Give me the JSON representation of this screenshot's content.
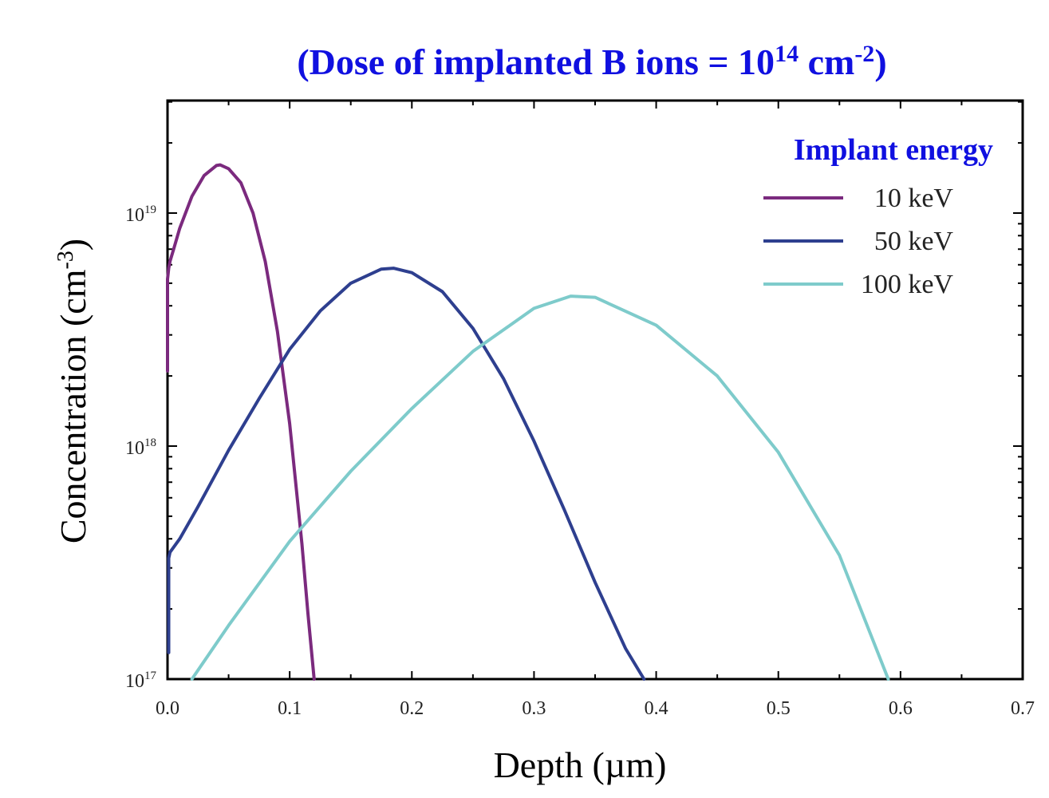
{
  "chart_data": {
    "type": "line",
    "title": {
      "prefix": "(Dose of implanted B ions = 10",
      "exp": "14",
      "mid": " cm",
      "exp2": "-2",
      "suffix": ")"
    },
    "xlabel": "Depth (µm)",
    "ylabel": {
      "base": "Concentration (cm",
      "exp": "-3",
      "close": ")"
    },
    "x_ticks": [
      "0.0",
      "0.1",
      "0.2",
      "0.3",
      "0.4",
      "0.5",
      "0.6",
      "0.7"
    ],
    "y_ticks": [
      {
        "base": "10",
        "exp": "17",
        "value": 1e+17
      },
      {
        "base": "10",
        "exp": "18",
        "value": 1e+18
      },
      {
        "base": "10",
        "exp": "19",
        "value": 1e+19
      }
    ],
    "xlim": [
      0,
      0.7
    ],
    "ylim": [
      1e+17,
      3e+19
    ],
    "y_scale": "log",
    "grid": false,
    "legend": {
      "title": "Implant energy",
      "placement": "top-right"
    },
    "colors": {
      "title": "#1010e0",
      "legend_title": "#1010e0",
      "axis": "#000000"
    },
    "series": [
      {
        "name": "10 keV",
        "color": "#7b2a7e",
        "x": [
          0.0,
          0.0,
          0.001,
          0.002,
          0.005,
          0.01,
          0.02,
          0.03,
          0.04,
          0.043,
          0.05,
          0.06,
          0.07,
          0.08,
          0.09,
          0.1,
          0.11,
          0.115,
          0.12
        ],
        "y": [
          2.1e+18,
          5.2e+18,
          5.8e+18,
          6.2e+18,
          7e+18,
          8.6e+18,
          1.18e+19,
          1.45e+19,
          1.6e+19,
          1.61e+19,
          1.55e+19,
          1.35e+19,
          1e+19,
          6.2e+18,
          3.1e+18,
          1.25e+18,
          3.8e+17,
          1.9e+17,
          1e+17
        ]
      },
      {
        "name": "50 keV",
        "color": "#2e3f8f",
        "x": [
          0.001,
          0.001,
          0.002,
          0.01,
          0.025,
          0.05,
          0.075,
          0.1,
          0.125,
          0.15,
          0.175,
          0.185,
          0.2,
          0.225,
          0.25,
          0.275,
          0.3,
          0.325,
          0.35,
          0.375,
          0.39
        ],
        "y": [
          1.3e+17,
          3.3e+17,
          3.5e+17,
          4e+17,
          5.5e+17,
          9.6e+17,
          1.6e+18,
          2.6e+18,
          3.8e+18,
          5e+18,
          5.75e+18,
          5.8e+18,
          5.55e+18,
          4.6e+18,
          3.2e+18,
          1.95e+18,
          1.05e+18,
          5.3e+17,
          2.6e+17,
          1.35e+17,
          1e+17
        ]
      },
      {
        "name": "100 keV",
        "color": "#7ecbcb",
        "x": [
          0.02,
          0.05,
          0.1,
          0.15,
          0.2,
          0.25,
          0.3,
          0.33,
          0.35,
          0.4,
          0.45,
          0.5,
          0.55,
          0.59
        ],
        "y": [
          1e+17,
          1.7e+17,
          3.9e+17,
          7.8e+17,
          1.45e+18,
          2.55e+18,
          3.9e+18,
          4.4e+18,
          4.35e+18,
          3.3e+18,
          2e+18,
          9.4e+17,
          3.4e+17,
          1e+17
        ]
      }
    ]
  }
}
